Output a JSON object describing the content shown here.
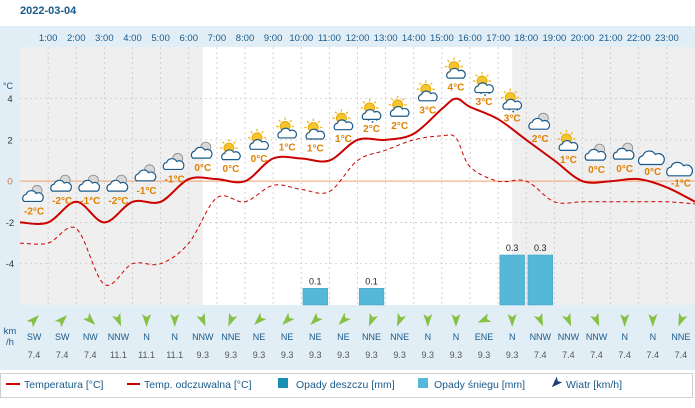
{
  "chart_data": {
    "type": "line",
    "title": "2022-03-04",
    "hours": [
      "1:00",
      "2:00",
      "3:00",
      "4:00",
      "5:00",
      "6:00",
      "7:00",
      "8:00",
      "9:00",
      "10:00",
      "11:00",
      "12:00",
      "13:00",
      "14:00",
      "15:00",
      "16:00",
      "17:00",
      "18:00",
      "19:00",
      "20:00",
      "21:00",
      "22:00",
      "23:00"
    ],
    "y_unit_label": "°C",
    "y_ticks": [
      4,
      2,
      0,
      -2,
      -4
    ],
    "ylim": [
      -6,
      6.5
    ],
    "temperature": {
      "name": "Temperatura [°C]",
      "color": "#cc0000",
      "x": [
        0,
        1,
        2,
        3,
        4,
        5,
        6,
        7,
        8,
        9,
        10,
        11,
        12,
        13,
        14,
        15,
        15.5,
        16,
        17,
        18,
        19,
        20,
        21,
        22,
        23,
        24
      ],
      "y": [
        -2.0,
        -2.0,
        -1.0,
        -2.0,
        -1.0,
        -1.0,
        0.1,
        0.1,
        0.0,
        1.1,
        1.1,
        1.0,
        2.0,
        2.0,
        2.3,
        3.5,
        4.0,
        3.6,
        3.0,
        2.0,
        1.0,
        0.0,
        0.0,
        0.1,
        -0.3,
        -1.0
      ]
    },
    "feels_like": {
      "name": "Temp. odczuwalna [°C]",
      "color": "#cc0000",
      "x": [
        0,
        1,
        2,
        3,
        4,
        5,
        6,
        7,
        8,
        9,
        10,
        11,
        12,
        13,
        14,
        15,
        15.5,
        16,
        17,
        18,
        19,
        20,
        21,
        22,
        23,
        24
      ],
      "y": [
        -3.0,
        -3.0,
        -2.3,
        -5.0,
        -4.0,
        -4.0,
        -3.0,
        -0.8,
        -1.0,
        -0.2,
        -0.4,
        -0.5,
        1.0,
        1.5,
        2.0,
        2.2,
        2.1,
        0.7,
        0.0,
        0.0,
        -1.0,
        -1.0,
        -1.0,
        -1.0,
        -1.0,
        -1.1
      ]
    },
    "temp_labels": [
      "-2°C",
      "-2°C",
      "-1°C",
      "-2°C",
      "-1°C",
      "-1°C",
      "0°C",
      "0°C",
      "0°C",
      "1°C",
      "1°C",
      "1°C",
      "2°C",
      "2°C",
      "3°C",
      "4°C",
      "3°C",
      "3°C",
      "2°C",
      "1°C",
      "0°C",
      "0°C",
      "0°C",
      "-1°C"
    ],
    "weather_icons": [
      "cloud-sun-icon",
      "cloud-sun-icon",
      "cloud-sun-icon",
      "cloud-sun-icon",
      "cloud-sun-icon",
      "cloud-sun-icon",
      "cloud-sun-icon",
      "sun-cloud-icon",
      "sun-cloud-icon",
      "sun-cloud-icon",
      "sun-cloud-icon",
      "sun-cloud-icon",
      "sun-snow-icon",
      "sun-cloud-icon",
      "sun-cloud-icon",
      "sun-cloud-icon",
      "sun-snow-icon",
      "sun-snow-icon",
      "cloud-sun-icon",
      "sun-cloud-icon",
      "cloud-sun-icon",
      "cloud-sun-icon",
      "cloud-icon",
      "cloud-icon"
    ],
    "rain": {
      "name": "Opady deszczu [mm]",
      "color": "#1a8fb5",
      "values": [
        0,
        0,
        0,
        0,
        0,
        0,
        0,
        0,
        0,
        0,
        0,
        0,
        0,
        0,
        0,
        0,
        0,
        0,
        0,
        0,
        0,
        0,
        0,
        0
      ]
    },
    "snow": {
      "name": "Opady śniegu [mm]",
      "color": "#55b8d8",
      "values": [
        0,
        0,
        0,
        0,
        0,
        0,
        0,
        0,
        0,
        0,
        0.1,
        0,
        0.1,
        0,
        0,
        0,
        0,
        0.3,
        0.3,
        0,
        0,
        0,
        0,
        0
      ],
      "labels": [
        "",
        "",
        "",
        "",
        "",
        "",
        "",
        "",
        "",
        "",
        "0.1",
        "",
        "0.1",
        "",
        "",
        "",
        "",
        "0.3",
        "0.3",
        "",
        "",
        "",
        "",
        ""
      ],
      "scale_max": 0.42
    },
    "wind": {
      "name": "Wiatr [km/h]",
      "label": "km\n/h",
      "directions": [
        "SW",
        "SW",
        "NW",
        "NNW",
        "N",
        "N",
        "NNW",
        "NNE",
        "NE",
        "NE",
        "NE",
        "NE",
        "NNE",
        "NNE",
        "N",
        "N",
        "ENE",
        "N",
        "NNW",
        "NNW",
        "NNW",
        "N",
        "N",
        "NNE"
      ],
      "speeds": [
        "7.4",
        "7.4",
        "7.4",
        "11.1",
        "11.1",
        "11.1",
        "9.3",
        "9.3",
        "9.3",
        "9.3",
        "9.3",
        "9.3",
        "9.3",
        "9.3",
        "9.3",
        "9.3",
        "9.3",
        "9.3",
        "7.4",
        "7.4",
        "7.4",
        "7.4",
        "7.4",
        "7.4"
      ]
    },
    "colors": {
      "axis_bg": "#e2eef6",
      "night_shade": "#efefef",
      "grid": "#c8c8c8",
      "zero_line": "#f0a070",
      "label_orange": "#e08000",
      "tick_text": "#1a5a8a",
      "title_text": "#1a5a8a",
      "wind_arrow": "#86c044"
    }
  }
}
